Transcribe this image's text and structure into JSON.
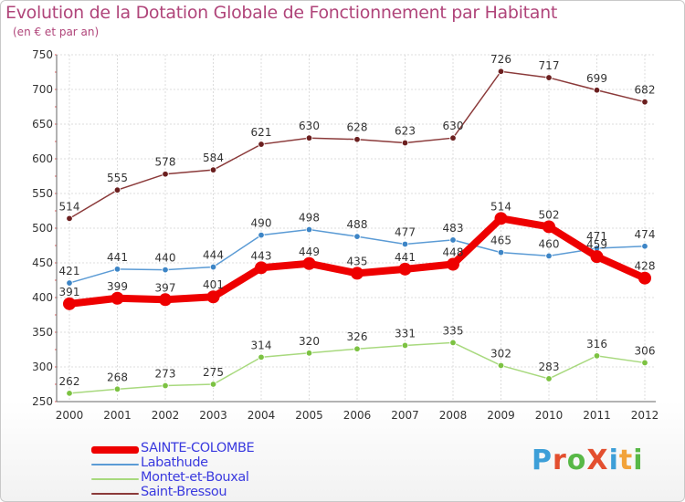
{
  "title": "Evolution de la Dotation Globale de Fonctionnement par Habitant",
  "subtitle": "(en € et par an)",
  "logo": {
    "text": "ProXiti",
    "letter_colors": [
      "#3d9fd8",
      "#e34f2f",
      "#58b847",
      "#e34f2f",
      "#3d9fd8",
      "#f2a33a",
      "#58b847"
    ]
  },
  "chart_data": {
    "type": "line",
    "x": [
      "2000",
      "2001",
      "2002",
      "2003",
      "2004",
      "2005",
      "2006",
      "2007",
      "2008",
      "2009",
      "2010",
      "2011",
      "2012"
    ],
    "ylim": [
      250,
      750
    ],
    "yticks": [
      "250",
      "300",
      "350",
      "400",
      "450",
      "500",
      "550",
      "600",
      "650",
      "700",
      "750"
    ],
    "grid": true,
    "legend_position": "bottom-left",
    "series": [
      {
        "name": "SAINTE-COLOMBE",
        "color": "#ee0000",
        "emphasis": true,
        "values": [
          391,
          399,
          397,
          401,
          443,
          449,
          435,
          441,
          448,
          514,
          502,
          459,
          428
        ],
        "labels": [
          "391",
          "399",
          "397",
          "401",
          "443",
          "449",
          "435",
          "441",
          "448",
          "514",
          "502",
          "459",
          "428"
        ]
      },
      {
        "name": "Labathude",
        "color": "#5b9bd5",
        "marker": "#3d85c6",
        "values": [
          421,
          441,
          440,
          444,
          490,
          498,
          488,
          477,
          483,
          465,
          460,
          471,
          474
        ],
        "labels": [
          "421",
          "441",
          "440",
          "444",
          "490",
          "498",
          "488",
          "477",
          "483",
          "465",
          "460",
          "471",
          "474"
        ]
      },
      {
        "name": "Montet-et-Bouxal",
        "color": "#a8d97e",
        "marker": "#7cc242",
        "values": [
          262,
          268,
          273,
          275,
          314,
          320,
          326,
          331,
          335,
          302,
          283,
          316,
          306
        ],
        "labels": [
          "262",
          "268",
          "273",
          "275",
          "314",
          "320",
          "326",
          "331",
          "335",
          "302",
          "283",
          "316",
          "306"
        ]
      },
      {
        "name": "Saint-Bressou",
        "color": "#8b3a3a",
        "marker": "#6b1f1f",
        "values": [
          514,
          555,
          578,
          584,
          621,
          630,
          628,
          623,
          630,
          726,
          717,
          699,
          682
        ],
        "labels": [
          "514",
          "555",
          "578",
          "584",
          "621",
          "630",
          "628",
          "623",
          "630",
          "726",
          "717",
          "699",
          "682"
        ]
      }
    ]
  }
}
